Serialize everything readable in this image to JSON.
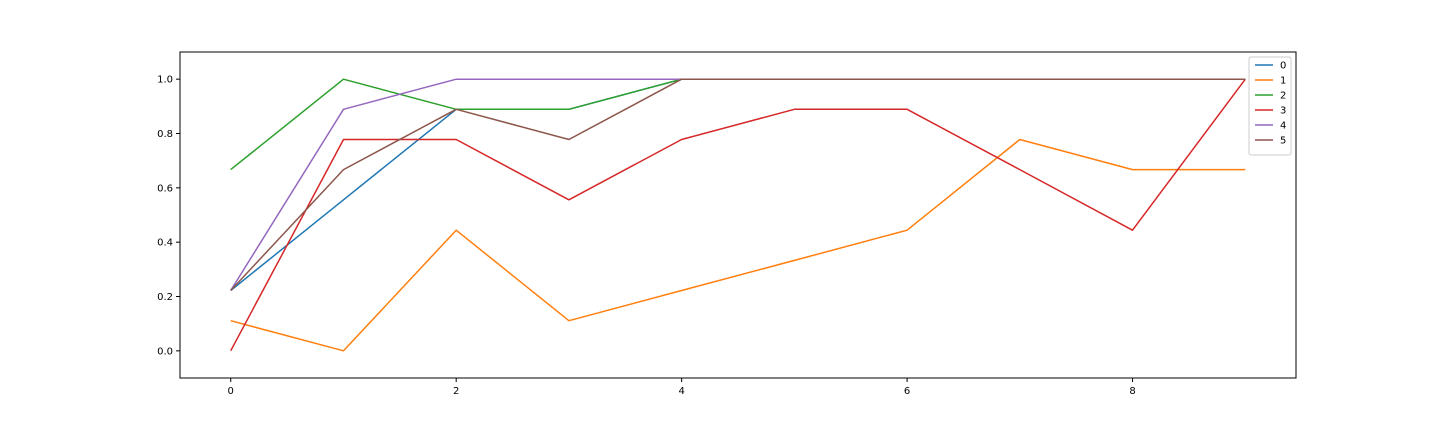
{
  "chart_data": {
    "type": "line",
    "title": "",
    "xlabel": "",
    "ylabel": "",
    "x": [
      0,
      1,
      2,
      3,
      4,
      5,
      6,
      7,
      8,
      9
    ],
    "xlim": [
      -0.45,
      9.45
    ],
    "ylim": [
      -0.1,
      1.1
    ],
    "xticks": [
      0,
      2,
      4,
      6,
      8
    ],
    "yticks": [
      0.0,
      0.2,
      0.4,
      0.6,
      0.8,
      1.0
    ],
    "xtick_labels": [
      "0",
      "2",
      "4",
      "6",
      "8"
    ],
    "ytick_labels": [
      "0.0",
      "0.2",
      "0.4",
      "0.6",
      "0.8",
      "1.0"
    ],
    "grid": false,
    "legend_position": "top-right",
    "series": [
      {
        "name": "0",
        "color": "#1f77b4",
        "values": [
          0.222,
          0.556,
          0.889,
          0.889,
          1.0,
          1.0,
          1.0,
          1.0,
          1.0,
          1.0
        ]
      },
      {
        "name": "1",
        "color": "#ff7f0e",
        "values": [
          0.111,
          0.0,
          0.444,
          0.111,
          0.222,
          0.333,
          0.444,
          0.778,
          0.667,
          0.667
        ]
      },
      {
        "name": "2",
        "color": "#2ca02c",
        "values": [
          0.667,
          1.0,
          0.889,
          0.889,
          1.0,
          1.0,
          1.0,
          1.0,
          1.0,
          1.0
        ]
      },
      {
        "name": "3",
        "color": "#d62728",
        "values": [
          0.0,
          0.778,
          0.778,
          0.556,
          0.778,
          0.889,
          0.889,
          0.667,
          0.444,
          1.0
        ]
      },
      {
        "name": "4",
        "color": "#9467bd",
        "values": [
          0.222,
          0.889,
          1.0,
          1.0,
          1.0,
          1.0,
          1.0,
          1.0,
          1.0,
          1.0
        ]
      },
      {
        "name": "5",
        "color": "#8c564b",
        "values": [
          0.222,
          0.667,
          0.889,
          0.778,
          1.0,
          1.0,
          1.0,
          1.0,
          1.0,
          1.0
        ]
      }
    ]
  }
}
